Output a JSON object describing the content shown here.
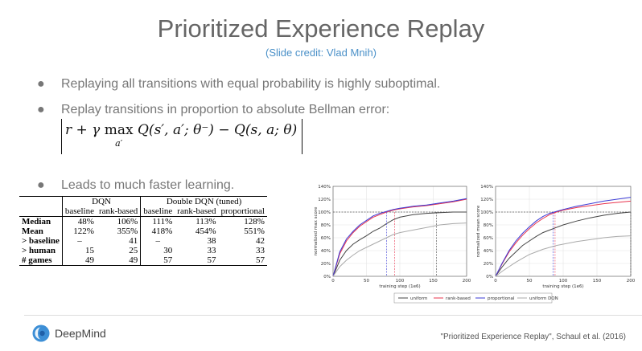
{
  "slide": {
    "title": "Prioritized Experience Replay",
    "subtitle": "(Slide credit: Vlad Mnih)",
    "bullets": [
      "Replaying all transitions with equal probability is highly suboptimal.",
      "Replay transitions in proportion to absolute Bellman error:",
      "Leads to much faster learning."
    ],
    "bullet_glyph": "●",
    "formula": {
      "part1": "r + γ ",
      "max": "max",
      "max_sub": "a′",
      "part2": " Q(s′, a′; θ⁻) − Q(s, a; θ)"
    },
    "logo_text": "DeepMind",
    "citation": "\"Prioritized Experience Replay\", Schaul et al. (2016)"
  },
  "table": {
    "group_headers": [
      "DQN",
      "Double DQN (tuned)"
    ],
    "column_headers": [
      "baseline",
      "rank-based",
      "baseline",
      "rank-based",
      "proportional"
    ],
    "rows": [
      {
        "label": "Median",
        "cells": [
          "48%",
          "106%",
          "111%",
          "113%",
          "128%"
        ]
      },
      {
        "label": "Mean",
        "cells": [
          "122%",
          "355%",
          "418%",
          "454%",
          "551%"
        ]
      },
      {
        "label": "> baseline",
        "cells": [
          "–",
          "41",
          "–",
          "38",
          "42"
        ]
      },
      {
        "label": "> human",
        "cells": [
          "15",
          "25",
          "30",
          "33",
          "33"
        ]
      },
      {
        "label": "# games",
        "cells": [
          "49",
          "49",
          "57",
          "57",
          "57"
        ]
      }
    ]
  },
  "chart_data": [
    {
      "type": "line",
      "title": "",
      "xlabel": "training step (1e6)",
      "ylabel": "normalized max score",
      "xlim": [
        0,
        200
      ],
      "ylim": [
        0,
        140
      ],
      "xticks": [
        0,
        50,
        100,
        150,
        200
      ],
      "yticks": [
        0,
        20,
        40,
        60,
        80,
        100,
        120,
        140
      ],
      "xtick_labels": [
        "0",
        "50",
        "100",
        "150",
        "200"
      ],
      "ytick_labels": [
        "0%",
        "20%",
        "40%",
        "60%",
        "80%",
        "100%",
        "120%",
        "140%"
      ],
      "grid": true,
      "reference_line_y": 100,
      "series": [
        {
          "name": "uniform",
          "color": "#444444",
          "x": [
            0,
            10,
            20,
            30,
            40,
            50,
            60,
            70,
            80,
            90,
            100,
            120,
            140,
            160,
            180,
            200
          ],
          "y": [
            0,
            25,
            40,
            50,
            57,
            63,
            70,
            75,
            82,
            88,
            92,
            96,
            98,
            99,
            100,
            100
          ],
          "marker_x": 155
        },
        {
          "name": "rank-based",
          "color": "#e8344e",
          "x": [
            0,
            10,
            20,
            30,
            40,
            50,
            60,
            70,
            80,
            90,
            100,
            120,
            140,
            160,
            180,
            200
          ],
          "y": [
            0,
            35,
            55,
            68,
            78,
            85,
            92,
            96,
            100,
            103,
            105,
            108,
            110,
            113,
            116,
            120
          ],
          "marker_x": 92
        },
        {
          "name": "proportional",
          "color": "#3b3bd6",
          "x": [
            0,
            10,
            20,
            30,
            40,
            50,
            60,
            70,
            80,
            90,
            100,
            120,
            140,
            160,
            180,
            200
          ],
          "y": [
            0,
            38,
            58,
            70,
            80,
            87,
            94,
            98,
            101,
            104,
            106,
            109,
            111,
            114,
            117,
            121
          ],
          "marker_x": 80
        },
        {
          "name": "uniform DQN",
          "color": "#aaaaaa",
          "x": [
            0,
            10,
            20,
            30,
            40,
            50,
            60,
            70,
            80,
            90,
            100,
            120,
            140,
            160,
            180,
            200
          ],
          "y": [
            0,
            15,
            25,
            33,
            40,
            45,
            50,
            55,
            60,
            65,
            68,
            72,
            76,
            80,
            82,
            83
          ],
          "marker_x": null
        }
      ]
    },
    {
      "type": "line",
      "title": "",
      "xlabel": "training step (1e6)",
      "ylabel": "normalized mean score",
      "xlim": [
        0,
        200
      ],
      "ylim": [
        0,
        140
      ],
      "xticks": [
        0,
        50,
        100,
        150,
        200
      ],
      "yticks": [
        0,
        20,
        40,
        60,
        80,
        100,
        120,
        140
      ],
      "xtick_labels": [
        "0",
        "50",
        "100",
        "150",
        "200"
      ],
      "ytick_labels": [
        "0%",
        "20%",
        "40%",
        "60%",
        "80%",
        "100%",
        "120%",
        "140%"
      ],
      "grid": true,
      "reference_line_y": 100,
      "series": [
        {
          "name": "uniform",
          "color": "#444444",
          "x": [
            0,
            10,
            20,
            30,
            40,
            50,
            60,
            70,
            80,
            90,
            100,
            120,
            140,
            160,
            180,
            200
          ],
          "y": [
            0,
            15,
            28,
            38,
            48,
            55,
            62,
            68,
            72,
            76,
            80,
            86,
            91,
            95,
            98,
            100
          ],
          "marker_x": 200
        },
        {
          "name": "rank-based",
          "color": "#e8344e",
          "x": [
            0,
            10,
            20,
            30,
            40,
            50,
            60,
            70,
            80,
            90,
            100,
            120,
            140,
            160,
            180,
            200
          ],
          "y": [
            0,
            20,
            38,
            52,
            64,
            74,
            83,
            90,
            96,
            100,
            103,
            107,
            110,
            113,
            115,
            117
          ],
          "marker_x": 88
        },
        {
          "name": "proportional",
          "color": "#3b3bd6",
          "x": [
            0,
            10,
            20,
            30,
            40,
            50,
            60,
            70,
            80,
            90,
            100,
            120,
            140,
            160,
            180,
            200
          ],
          "y": [
            0,
            21,
            40,
            55,
            67,
            77,
            86,
            93,
            98,
            101,
            104,
            109,
            113,
            117,
            120,
            123
          ],
          "marker_x": 85
        },
        {
          "name": "uniform DQN",
          "color": "#aaaaaa",
          "x": [
            0,
            10,
            20,
            30,
            40,
            50,
            60,
            70,
            80,
            90,
            100,
            120,
            140,
            160,
            180,
            200
          ],
          "y": [
            0,
            8,
            15,
            22,
            28,
            34,
            38,
            42,
            45,
            48,
            50,
            54,
            57,
            60,
            62,
            63
          ],
          "marker_x": null
        }
      ]
    }
  ],
  "legend": [
    "uniform",
    "rank-based",
    "proportional",
    "uniform DQN"
  ]
}
